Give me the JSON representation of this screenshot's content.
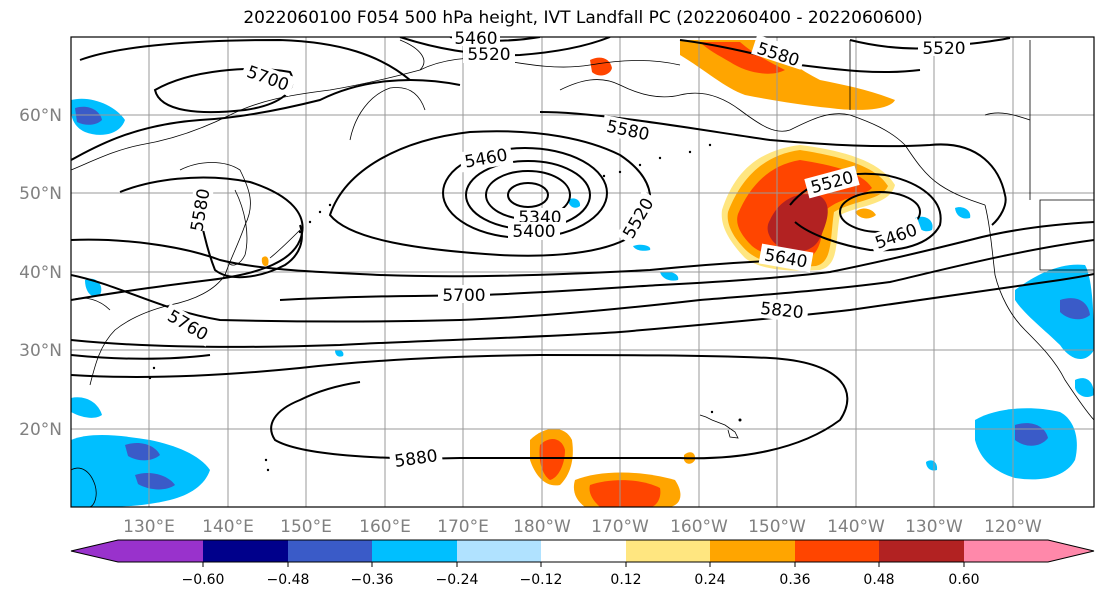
{
  "title": "2022060100 F054 500 hPa height, IVT Landfall PC (2022060400 - 2022060600)",
  "lat_labels": [
    "60°N",
    "50°N",
    "40°N",
    "30°N",
    "20°N"
  ],
  "lon_labels": [
    "130°E",
    "140°E",
    "150°E",
    "160°E",
    "170°E",
    "180°W",
    "170°W",
    "160°W",
    "150°W",
    "140°W",
    "130°W",
    "120°W"
  ],
  "colorbar": {
    "tick_labels": [
      "−0.60",
      "−0.48",
      "−0.36",
      "−0.24",
      "−0.12",
      "0.12",
      "0.24",
      "0.36",
      "0.48",
      "0.60"
    ],
    "colors": [
      "#9932CC",
      "#00008B",
      "#3A5BC8",
      "#00BFFF",
      "#B0E2FF",
      "#FFFFFF",
      "#FFE680",
      "#FFA500",
      "#FF4500",
      "#B22222",
      "#FF88AA"
    ]
  },
  "contour_labels": [
    "5460",
    "5520",
    "5580",
    "5700",
    "5520",
    "5580",
    "5580",
    "5460",
    "5340",
    "5400",
    "5520",
    "5520",
    "5460",
    "5640",
    "5700",
    "5760",
    "5820",
    "5880"
  ]
}
